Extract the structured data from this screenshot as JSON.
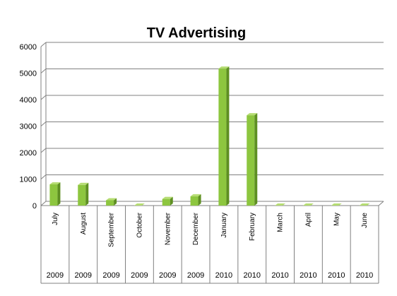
{
  "chart_data": {
    "type": "bar",
    "title": "TV Advertising",
    "xlabel": "",
    "ylabel": "",
    "ylim": [
      0,
      6000
    ],
    "yticks": [
      0,
      1000,
      2000,
      3000,
      4000,
      5000,
      6000
    ],
    "grid": true,
    "legend": false,
    "categories": [
      "July",
      "August",
      "September",
      "October",
      "November",
      "December",
      "January",
      "February",
      "March",
      "April",
      "May",
      "June"
    ],
    "years": [
      "2009",
      "2009",
      "2009",
      "2009",
      "2009",
      "2009",
      "2010",
      "2010",
      "2010",
      "2010",
      "2010",
      "2010"
    ],
    "values": [
      800,
      780,
      200,
      0,
      250,
      350,
      5170,
      3410,
      0,
      0,
      0,
      0
    ],
    "colors": {
      "bar_front": "#8dc63f",
      "bar_side": "#5e8f22",
      "bar_top": "#b5dc72",
      "grid": "#808080",
      "axis": "#808080"
    }
  }
}
